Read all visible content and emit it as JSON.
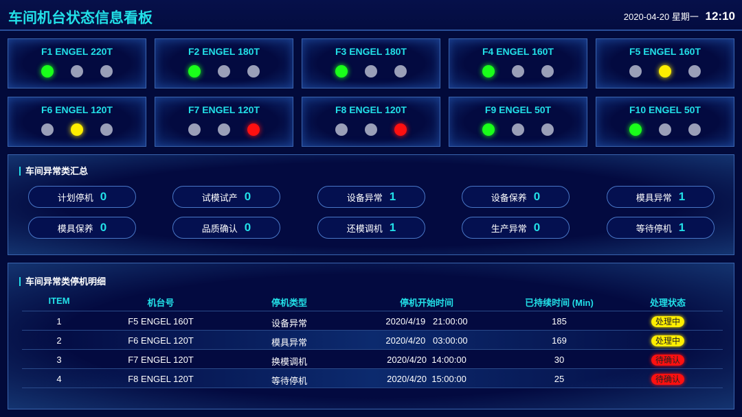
{
  "header": {
    "title": "车间机台状态信息看板",
    "date": "2020-04-20",
    "weekday": "星期一",
    "time": "12:10"
  },
  "colors": {
    "accent": "#22e0e8",
    "green": "#1aff1a",
    "yellow": "#ffee00",
    "red": "#ff1010",
    "off": "#9a9fb8"
  },
  "machines": [
    {
      "name": "F1 ENGEL 220T",
      "lights": [
        "green",
        "off",
        "off"
      ]
    },
    {
      "name": "F2 ENGEL 180T",
      "lights": [
        "green",
        "off",
        "off"
      ]
    },
    {
      "name": "F3 ENGEL 180T",
      "lights": [
        "green",
        "off",
        "off"
      ]
    },
    {
      "name": "F4 ENGEL 160T",
      "lights": [
        "green",
        "off",
        "off"
      ]
    },
    {
      "name": "F5 ENGEL 160T",
      "lights": [
        "off",
        "yellow",
        "off"
      ]
    },
    {
      "name": "F6 ENGEL 120T",
      "lights": [
        "off",
        "yellow",
        "off"
      ]
    },
    {
      "name": "F7 ENGEL 120T",
      "lights": [
        "off",
        "off",
        "red"
      ]
    },
    {
      "name": "F8 ENGEL 120T",
      "lights": [
        "off",
        "off",
        "red"
      ]
    },
    {
      "name": "F9 ENGEL 50T",
      "lights": [
        "green",
        "off",
        "off"
      ]
    },
    {
      "name": "F10 ENGEL 50T",
      "lights": [
        "green",
        "off",
        "off"
      ]
    }
  ],
  "summary": {
    "title": "车间异常类汇总",
    "items": [
      {
        "label": "计划停机",
        "value": "0"
      },
      {
        "label": "试模试产",
        "value": "0"
      },
      {
        "label": "设备异常",
        "value": "1"
      },
      {
        "label": "设备保养",
        "value": "0"
      },
      {
        "label": "模具异常",
        "value": "1"
      },
      {
        "label": "模具保养",
        "value": "0"
      },
      {
        "label": "品质确认",
        "value": "0"
      },
      {
        "label": "还模调机",
        "value": "1"
      },
      {
        "label": "生产异常",
        "value": "0"
      },
      {
        "label": "等待停机",
        "value": "1"
      }
    ]
  },
  "detail": {
    "title": "车间异常类停机明细",
    "columns": [
      "ITEM",
      "机台号",
      "停机类型",
      "停机开始时间",
      "已持续时间 (Min)",
      "处理状态"
    ],
    "rows": [
      {
        "item": "1",
        "machine": "F5 ENGEL 160T",
        "type": "设备异常",
        "start": "2020/4/19   21:00:00",
        "duration": "185",
        "status": "处理中",
        "status_color": "yellow"
      },
      {
        "item": "2",
        "machine": "F6 ENGEL 120T",
        "type": "模具异常",
        "start": "2020/4/20   03:00:00",
        "duration": "169",
        "status": "处理中",
        "status_color": "yellow"
      },
      {
        "item": "3",
        "machine": "F7 ENGEL 120T",
        "type": "换模调机",
        "start": "2020/4/20  14:00:00",
        "duration": "30",
        "status": "待确认",
        "status_color": "red"
      },
      {
        "item": "4",
        "machine": "F8 ENGEL 120T",
        "type": "等待停机",
        "start": "2020/4/20  15:00:00",
        "duration": "25",
        "status": "待确认",
        "status_color": "red"
      }
    ]
  }
}
